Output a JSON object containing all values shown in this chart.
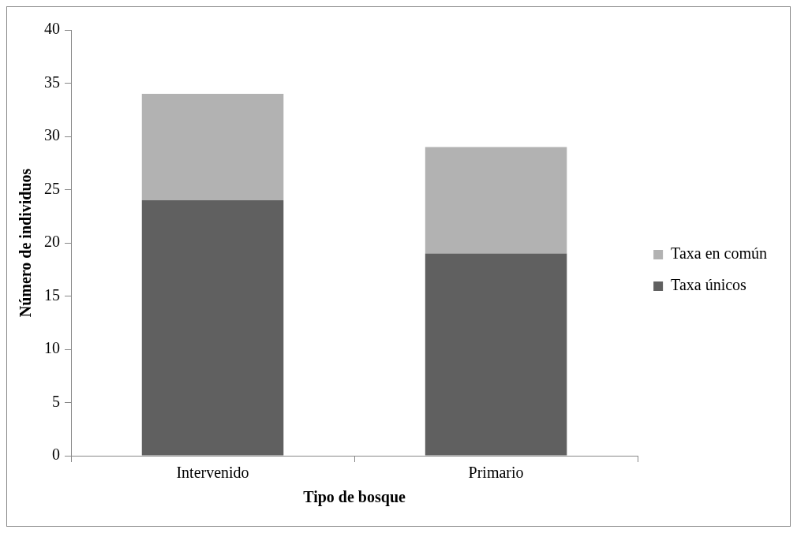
{
  "chart_data": {
    "type": "bar",
    "stacked": true,
    "xlabel": "Tipo de bosque",
    "ylabel": "Número de individuos",
    "categories": [
      "Intervenido",
      "Primario"
    ],
    "series": [
      {
        "name": "Taxa únicos",
        "color": "#606060",
        "values": [
          24,
          19
        ]
      },
      {
        "name": "Taxa en común",
        "color": "#b2b2b2",
        "values": [
          10,
          10
        ]
      }
    ],
    "ylim": [
      0,
      40
    ],
    "yticks": [
      0,
      5,
      10,
      15,
      20,
      25,
      30,
      35,
      40
    ],
    "grid": false,
    "legend": "right"
  }
}
